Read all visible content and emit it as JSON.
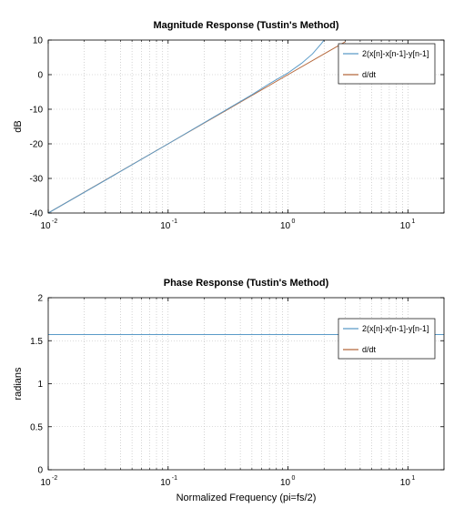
{
  "chart_data": [
    {
      "type": "line",
      "title": "Magnitude Response (Tustin's Method)",
      "xlabel": "",
      "ylabel": "dB",
      "xscale": "log",
      "xlim": [
        0.01,
        20
      ],
      "ylim": [
        -40,
        10
      ],
      "xticks": [
        0.01,
        0.1,
        1,
        10
      ],
      "xtick_labels": [
        {
          "base": "10",
          "exp": "-2"
        },
        {
          "base": "10",
          "exp": "-1"
        },
        {
          "base": "10",
          "exp": "0"
        },
        {
          "base": "10",
          "exp": "1"
        }
      ],
      "yticks": [
        -40,
        -30,
        -20,
        -10,
        0,
        10
      ],
      "ytick_labels": [
        "-40",
        "-30",
        "-20",
        "-10",
        "0",
        "10"
      ],
      "grid": true,
      "legend": "top-right",
      "series": [
        {
          "name": "2(x[n]-x[n-1]-y[n-1]",
          "color": "#5b9bc8",
          "x": [
            0.01,
            0.03,
            0.1,
            0.3,
            0.5,
            0.7,
            1.0,
            1.3,
            1.6,
            1.9,
            2.1
          ],
          "y": [
            -40.0,
            -30.5,
            -20.0,
            -10.3,
            -5.8,
            -2.6,
            0.5,
            3.3,
            6.0,
            9.0,
            11.0
          ]
        },
        {
          "name": "d/dt",
          "color": "#b5683c",
          "x": [
            0.01,
            0.1,
            1.0,
            2.0,
            3.0
          ],
          "y": [
            -40.0,
            -20.0,
            0.0,
            6.0,
            9.5
          ]
        }
      ]
    },
    {
      "type": "line",
      "title": "Phase Response (Tustin's Method)",
      "xlabel": "Normalized Frequency (pi=fs/2)",
      "ylabel": "radians",
      "xscale": "log",
      "xlim": [
        0.01,
        20
      ],
      "ylim": [
        0,
        2
      ],
      "xticks": [
        0.01,
        0.1,
        1,
        10
      ],
      "xtick_labels": [
        {
          "base": "10",
          "exp": "-2"
        },
        {
          "base": "10",
          "exp": "-1"
        },
        {
          "base": "10",
          "exp": "0"
        },
        {
          "base": "10",
          "exp": "1"
        }
      ],
      "yticks": [
        0,
        0.5,
        1,
        1.5,
        2
      ],
      "ytick_labels": [
        "0",
        "0.5",
        "1",
        "1.5",
        "2"
      ],
      "grid": true,
      "legend": "top-right",
      "series": [
        {
          "name": "2(x[n]-x[n-1]-y[n-1]",
          "color": "#5b9bc8",
          "x": [
            0.01,
            20
          ],
          "y": [
            1.5708,
            1.5708
          ]
        },
        {
          "name": "d/dt",
          "color": "#b5683c",
          "x": [
            0.01,
            20
          ],
          "y": [
            1.5708,
            1.5708
          ]
        }
      ]
    }
  ]
}
